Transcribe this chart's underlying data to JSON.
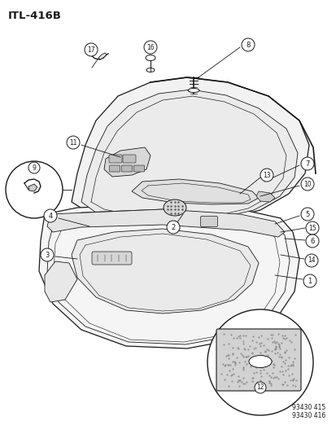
{
  "title": "ITL-416B",
  "ref1": "93430 415",
  "ref2": "93430 416",
  "bg": "#ffffff",
  "lc": "#1a1a1a",
  "figsize": [
    4.14,
    5.33
  ],
  "dpi": 100
}
